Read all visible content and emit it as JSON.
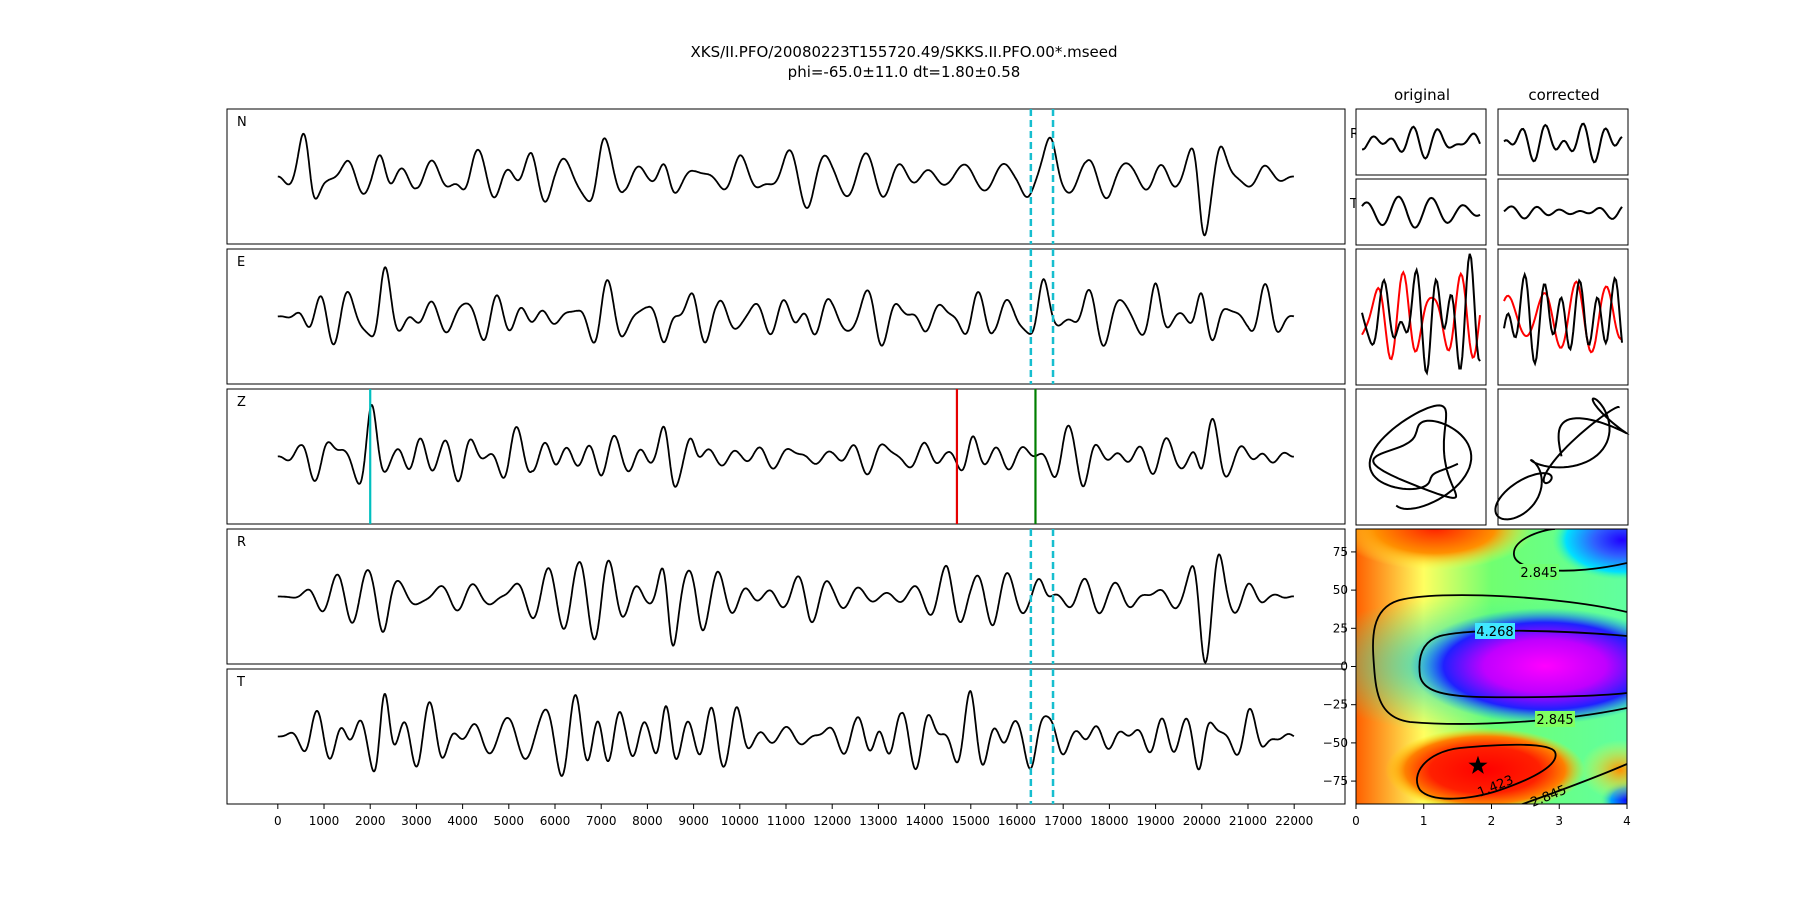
{
  "title": {
    "line1": "XKS/II.PFO/20080223T155720.49/SKKS.II.PFO.00*.mseed",
    "line2": "phi=-65.0±11.0 dt=1.80±0.58"
  },
  "panel_labels": [
    "N",
    "E",
    "Z",
    "R",
    "T"
  ],
  "column_titles": {
    "original": "original",
    "corrected": "corrected"
  },
  "row_labels": {
    "R": "R",
    "T": "T"
  },
  "colors": {
    "trace": "#000000",
    "window_marker": "#17becf",
    "pick_cyan": "#00bfbf",
    "pick_red": "#e60000",
    "pick_green": "#007f00",
    "particle_red": "#ff0000"
  },
  "chart_data": [
    {
      "type": "line",
      "name": "waveforms",
      "xlim": [
        -1100,
        23100
      ],
      "xticks": [
        0,
        1000,
        2000,
        3000,
        4000,
        5000,
        6000,
        7000,
        8000,
        9000,
        10000,
        11000,
        12000,
        13000,
        14000,
        15000,
        16000,
        17000,
        18000,
        19000,
        20000,
        21000,
        22000
      ],
      "xtick_labels": [
        "0",
        "1000",
        "2000",
        "3000",
        "4000",
        "5000",
        "6000",
        "7000",
        "8000",
        "9000",
        "10000",
        "11000",
        "12000",
        "13000",
        "14000",
        "15000",
        "16000",
        "17000",
        "18000",
        "19000",
        "20000",
        "21000",
        "22000"
      ],
      "trace_x_range": [
        0,
        22000
      ],
      "channels": [
        "N",
        "E",
        "Z",
        "R",
        "T"
      ],
      "window_markers": {
        "x": [
          16300,
          16780
        ],
        "channels": [
          "N",
          "E",
          "R",
          "T"
        ],
        "style": "dashed"
      },
      "picks": [
        {
          "channel": "Z",
          "x": 2000,
          "color": "#00bfbf"
        },
        {
          "channel": "Z",
          "x": 14700,
          "color": "#e60000"
        },
        {
          "channel": "Z",
          "x": 16400,
          "color": "#007f00"
        }
      ]
    },
    {
      "type": "heatmap",
      "name": "error-surface",
      "xlim": [
        0,
        4
      ],
      "ylim": [
        -90,
        90
      ],
      "xticks": [
        0,
        1,
        2,
        3,
        4
      ],
      "xtick_labels": [
        "0",
        "1",
        "2",
        "3",
        "4"
      ],
      "yticks": [
        75,
        50,
        25,
        0,
        -25,
        -50,
        -75
      ],
      "ytick_labels": [
        "75",
        "50",
        "25",
        "0",
        "−25",
        "−50",
        "−75"
      ],
      "colormap": "rainbow",
      "contour_labels": [
        "2.845",
        "4.268",
        "2.845",
        "1.423",
        "2.845"
      ],
      "best_fit": {
        "dt": 1.8,
        "phi": -65.0,
        "marker": "star"
      }
    }
  ]
}
